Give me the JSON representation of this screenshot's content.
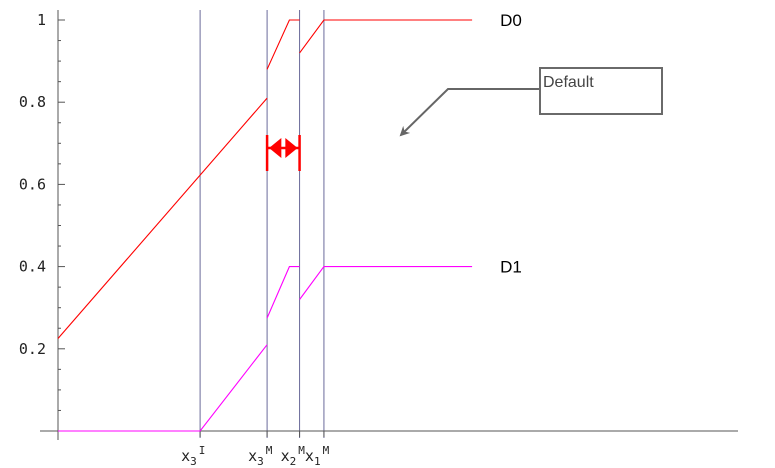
{
  "chart_data": {
    "type": "line",
    "title": "",
    "xlabel": "",
    "ylabel": "",
    "x_ticks": [
      {
        "id": "x3I",
        "base": "x",
        "sub": "3",
        "sup": "I"
      },
      {
        "id": "x3M",
        "base": "x",
        "sub": "3",
        "sup": "M"
      },
      {
        "id": "x2M",
        "base": "x",
        "sub": "2",
        "sup": "M"
      },
      {
        "id": "x1M",
        "base": "x",
        "sub": "1",
        "sup": "M"
      }
    ],
    "y_ticks": [
      "0.2",
      "0.4",
      "0.6",
      "0.8",
      "1"
    ],
    "y_tick_values": [
      0.2,
      0.4,
      0.6,
      0.8,
      1
    ],
    "ylim": [
      0,
      1.03
    ],
    "series": [
      {
        "name": "D0",
        "color": "#ff0000",
        "segments": [
          [
            [
              0,
              0.225
            ],
            [
              5.15,
              0.81
            ]
          ],
          [
            [
              5.15,
              0.88
            ],
            [
              5.7,
              1.0
            ],
            [
              5.95,
              1.0
            ]
          ],
          [
            [
              5.95,
              0.92
            ],
            [
              6.55,
              1.0
            ],
            [
              10.2,
              1.0
            ]
          ]
        ]
      },
      {
        "name": "D1",
        "color": "#ff00ff",
        "segments": [
          [
            [
              0,
              0.0
            ],
            [
              3.5,
              0.0
            ],
            [
              5.15,
              0.21
            ]
          ],
          [
            [
              5.15,
              0.275
            ],
            [
              5.7,
              0.4
            ],
            [
              5.95,
              0.4
            ]
          ],
          [
            [
              5.95,
              0.32
            ],
            [
              6.55,
              0.4
            ],
            [
              10.2,
              0.4
            ]
          ]
        ]
      }
    ],
    "annotation": {
      "text": "Default",
      "range_color": "#ff0000",
      "arrow_color": "#666666"
    }
  }
}
